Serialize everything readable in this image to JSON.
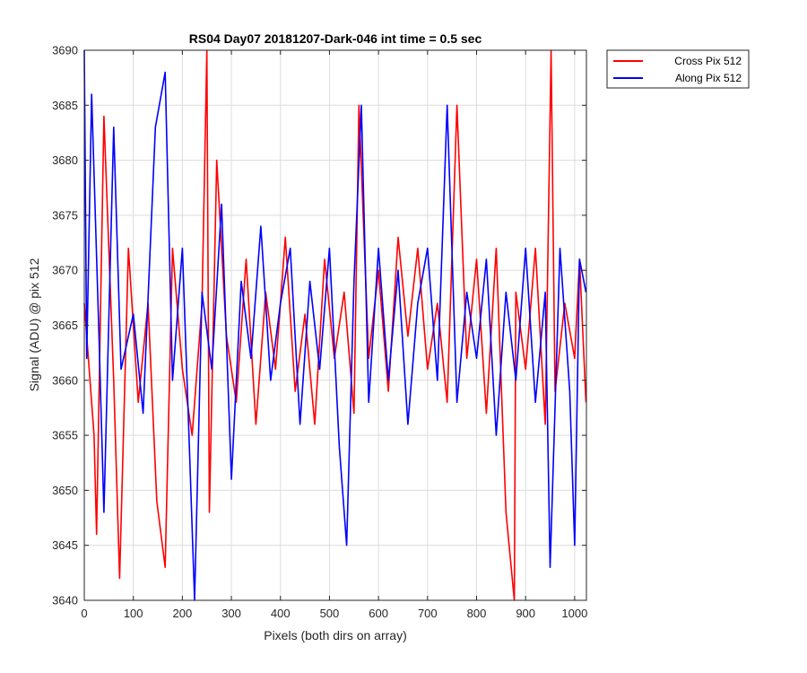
{
  "chart_data": {
    "type": "line",
    "title": "RS04 Day07 20181207-Dark-046 int time = 0.5 sec",
    "xlabel": "Pixels (both dirs on array)",
    "ylabel": "Signal (ADU) @ pix 512",
    "xlim": [
      0,
      1024
    ],
    "ylim": [
      3640,
      3690
    ],
    "xticks": [
      0,
      100,
      200,
      300,
      400,
      500,
      600,
      700,
      800,
      900,
      1000
    ],
    "yticks": [
      3640,
      3645,
      3650,
      3655,
      3660,
      3665,
      3670,
      3675,
      3680,
      3685,
      3690
    ],
    "grid": true,
    "legend_position": "outside-top-right",
    "series": [
      {
        "name": "Cross Pix 512",
        "color": "#ff0000",
        "x": [
          0,
          20,
          25,
          40,
          60,
          72,
          90,
          110,
          130,
          148,
          165,
          180,
          200,
          220,
          240,
          250,
          255,
          270,
          290,
          310,
          330,
          350,
          370,
          390,
          410,
          430,
          450,
          470,
          490,
          510,
          530,
          550,
          560,
          580,
          600,
          620,
          640,
          660,
          680,
          700,
          720,
          740,
          760,
          780,
          800,
          820,
          840,
          860,
          877,
          880,
          900,
          920,
          940,
          952,
          960,
          980,
          1000,
          1010,
          1023
        ],
        "y": [
          3667,
          3655,
          3646,
          3684,
          3660,
          3642,
          3672,
          3658,
          3667,
          3649,
          3643,
          3672,
          3661,
          3655,
          3667,
          3690,
          3648,
          3680,
          3664,
          3658,
          3671,
          3656,
          3668,
          3661,
          3673,
          3659,
          3666,
          3656,
          3671,
          3662,
          3668,
          3657,
          3685,
          3662,
          3670,
          3659,
          3673,
          3664,
          3672,
          3661,
          3667,
          3658,
          3685,
          3662,
          3671,
          3657,
          3672,
          3648,
          3640,
          3668,
          3661,
          3672,
          3656,
          3690,
          3659,
          3667,
          3662,
          3671,
          3658
        ]
      },
      {
        "name": "Along Pix 512",
        "color": "#0000ff",
        "x": [
          0,
          5,
          15,
          30,
          40,
          60,
          75,
          100,
          120,
          145,
          165,
          180,
          200,
          215,
          225,
          240,
          260,
          280,
          300,
          320,
          340,
          360,
          380,
          400,
          420,
          440,
          460,
          480,
          500,
          520,
          535,
          550,
          565,
          580,
          600,
          620,
          640,
          660,
          680,
          700,
          720,
          740,
          760,
          780,
          800,
          820,
          840,
          860,
          880,
          900,
          920,
          940,
          950,
          970,
          990,
          1000,
          1010,
          1023
        ],
        "y": [
          3690,
          3662,
          3686,
          3664,
          3648,
          3683,
          3661,
          3666,
          3657,
          3683,
          3688,
          3660,
          3672,
          3653,
          3640,
          3668,
          3661,
          3676,
          3651,
          3669,
          3662,
          3674,
          3660,
          3667,
          3672,
          3656,
          3669,
          3661,
          3672,
          3654,
          3645,
          3669,
          3685,
          3658,
          3672,
          3660,
          3670,
          3656,
          3667,
          3672,
          3660,
          3685,
          3658,
          3668,
          3662,
          3671,
          3655,
          3668,
          3660,
          3672,
          3658,
          3668,
          3643,
          3672,
          3659,
          3645,
          3671,
          3668
        ]
      }
    ]
  }
}
